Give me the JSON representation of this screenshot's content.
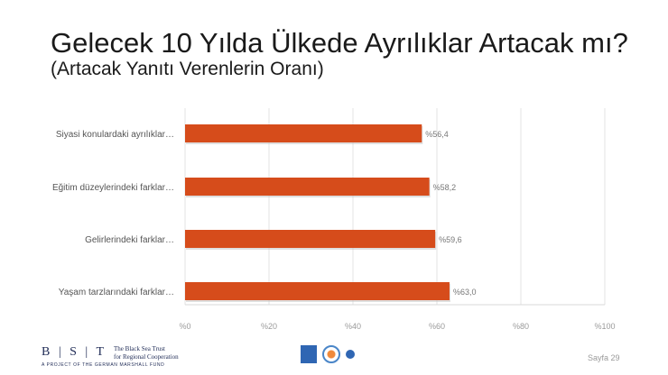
{
  "slide": {
    "title": "Gelecek 10 Yılda Ülkede Ayrılıklar Artacak mı?",
    "subtitle": "(Artacak Yanıtı Verenlerin Oranı)",
    "page_label": "Sayfa 29"
  },
  "footer": {
    "logo_text": "B | S | T",
    "org_name_line1": "The Black Sea Trust",
    "org_name_line2": "for Regional Cooperation",
    "project_line": "A PROJECT OF THE GERMAN MARSHALL FUND"
  },
  "chart_data": {
    "type": "bar",
    "orientation": "horizontal",
    "categories": [
      "Siyasi konulardaki ayrılıklar…",
      "Eğitim düzeylerindeki farklar…",
      "Gelirlerindeki farklar…",
      "Yaşam tarzlarındaki farklar…"
    ],
    "values": [
      56.4,
      58.2,
      59.6,
      63.0
    ],
    "value_labels": [
      "%56,4",
      "%58,2",
      "%59,6",
      "%63,0"
    ],
    "xlim": [
      0,
      100
    ],
    "xticks": [
      0,
      20,
      40,
      60,
      80,
      100
    ],
    "xtick_labels": [
      "%0",
      "%20",
      "%40",
      "%60",
      "%80",
      "%100"
    ],
    "bar_color": "#d64c1b",
    "grid": true
  }
}
